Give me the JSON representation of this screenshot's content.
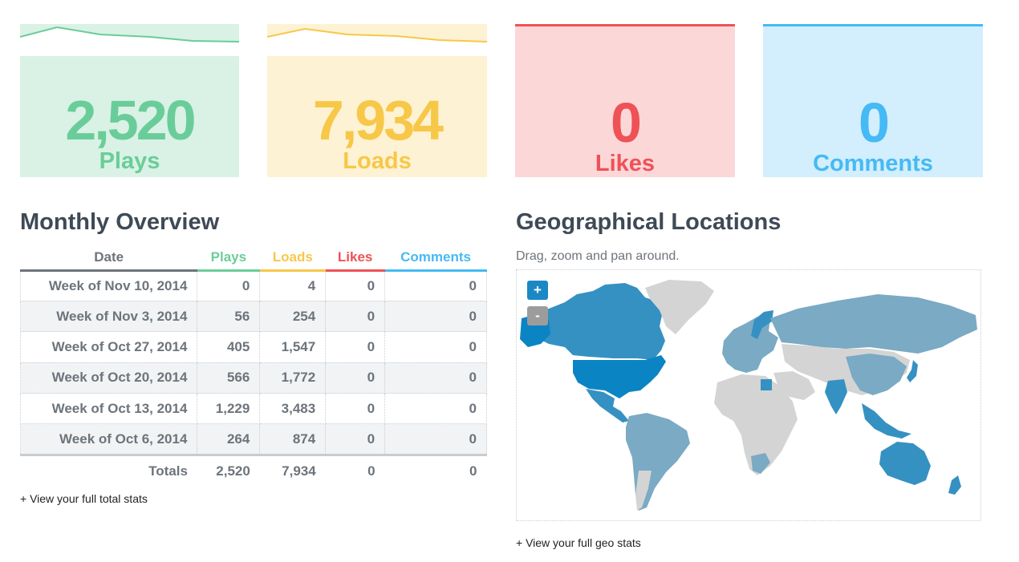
{
  "stats": {
    "plays": {
      "value": "2,520",
      "label": "Plays",
      "color": "#6acd99",
      "bg": "#d9f2e5"
    },
    "loads": {
      "value": "7,934",
      "label": "Loads",
      "color": "#f7c748",
      "bg": "#fdf2d3"
    },
    "likes": {
      "value": "0",
      "label": "Likes",
      "color": "#ee5257",
      "bg": "#fcd7d8"
    },
    "comments": {
      "value": "0",
      "label": "Comments",
      "color": "#45baf4",
      "bg": "#d3eefd"
    }
  },
  "overview": {
    "title": "Monthly Overview",
    "headers": {
      "date": "Date",
      "plays": "Plays",
      "loads": "Loads",
      "likes": "Likes",
      "comments": "Comments"
    },
    "rows": [
      {
        "date": "Week of Nov 10, 2014",
        "plays": "0",
        "loads": "4",
        "likes": "0",
        "comments": "0"
      },
      {
        "date": "Week of Nov 3, 2014",
        "plays": "56",
        "loads": "254",
        "likes": "0",
        "comments": "0"
      },
      {
        "date": "Week of Oct 27, 2014",
        "plays": "405",
        "loads": "1,547",
        "likes": "0",
        "comments": "0"
      },
      {
        "date": "Week of Oct 20, 2014",
        "plays": "566",
        "loads": "1,772",
        "likes": "0",
        "comments": "0"
      },
      {
        "date": "Week of Oct 13, 2014",
        "plays": "1,229",
        "loads": "3,483",
        "likes": "0",
        "comments": "0"
      },
      {
        "date": "Week of Oct 6, 2014",
        "plays": "264",
        "loads": "874",
        "likes": "0",
        "comments": "0"
      }
    ],
    "totals": {
      "label": "Totals",
      "plays": "2,520",
      "loads": "7,934",
      "likes": "0",
      "comments": "0"
    },
    "link": "+ View your full total stats"
  },
  "geo": {
    "title": "Geographical Locations",
    "subtitle": "Drag, zoom and pan around.",
    "zoom_in": "+",
    "zoom_out": "-",
    "link": "+ View your full geo stats",
    "colors": {
      "high": "#0b84c4",
      "mid": "#3591c2",
      "low": "#7aaac4",
      "none": "#d4d4d4"
    }
  }
}
